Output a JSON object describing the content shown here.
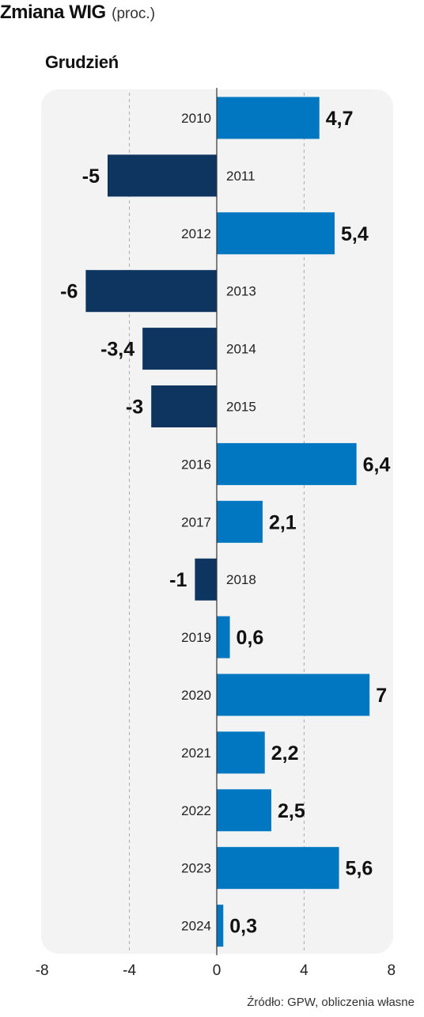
{
  "header": {
    "title": "Zmiana WIG",
    "unit": "(proc.)",
    "subtitle": "Grudzień"
  },
  "source": "Źródło: GPW, obliczenia własne",
  "colors": {
    "positive": "#0077c0",
    "negative": "#0e3460",
    "panel": "#f3f3f3",
    "grid": "#aaaaaa"
  },
  "chart_data": {
    "type": "bar",
    "orientation": "horizontal",
    "title": "Zmiana WIG",
    "subtitle": "Grudzień",
    "unit": "(proc.)",
    "categories": [
      "2010",
      "2011",
      "2012",
      "2013",
      "2014",
      "2015",
      "2016",
      "2017",
      "2018",
      "2019",
      "2020",
      "2021",
      "2022",
      "2023",
      "2024"
    ],
    "values": [
      4.7,
      -5,
      5.4,
      -6,
      -3.4,
      -3,
      6.4,
      2.1,
      -1,
      0.6,
      7,
      2.2,
      2.5,
      5.6,
      0.3
    ],
    "value_labels": [
      "4,7",
      "-5",
      "5,4",
      "-6",
      "-3,4",
      "-3",
      "6,4",
      "2,1",
      "-1",
      "0,6",
      "7",
      "2,2",
      "2,5",
      "5,6",
      "0,3"
    ],
    "xlim": [
      -8,
      8
    ],
    "xticks": [
      -8,
      -4,
      0,
      4,
      8
    ],
    "xtick_labels": [
      "-8",
      "-4",
      "0",
      "4",
      "8"
    ],
    "grid": true,
    "xlabel": "",
    "ylabel": ""
  }
}
